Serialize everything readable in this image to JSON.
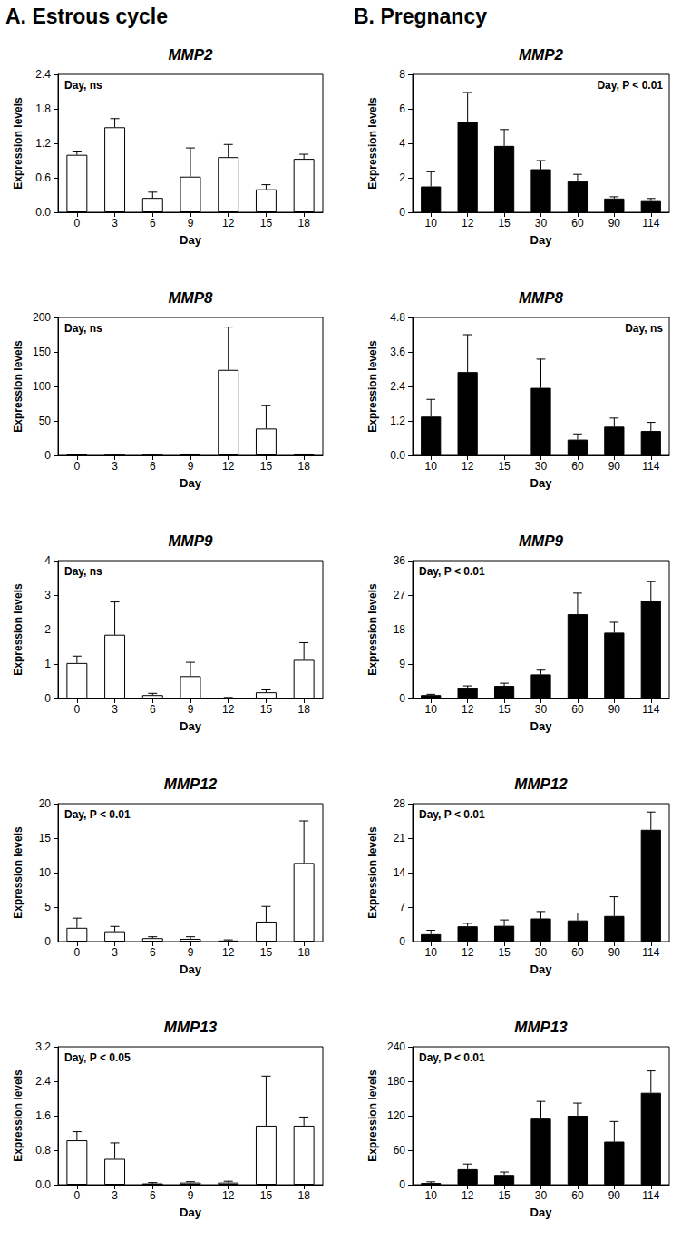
{
  "column_titles": [
    "A. Estrous cycle",
    "B. Pregnancy"
  ],
  "chart_data": [
    {
      "type": "bar",
      "title": "MMP2",
      "x_label": "Day",
      "y_label": "Expression levels",
      "annotation": "Day, ns",
      "categories": [
        "0",
        "3",
        "6",
        "9",
        "12",
        "15",
        "18"
      ],
      "values": [
        1.0,
        1.48,
        0.25,
        0.62,
        0.96,
        0.4,
        0.93
      ],
      "errors": [
        0.05,
        0.15,
        0.1,
        0.5,
        0.22,
        0.08,
        0.08
      ],
      "color": "#ffffff",
      "ylim": [
        0,
        2.4
      ],
      "yticks": [
        {
          "value": 0,
          "label": "0.0"
        },
        0.6,
        1.2,
        1.8,
        2.4
      ],
      "grid": false
    },
    {
      "type": "bar",
      "title": "MMP8",
      "x_label": "Day",
      "y_label": "Expression levels",
      "annotation": "Day, ns",
      "categories": [
        "0",
        "3",
        "6",
        "9",
        "12",
        "15",
        "18"
      ],
      "values": [
        1.0,
        0.1,
        0.1,
        1.5,
        124,
        39,
        1.5
      ],
      "errors": [
        0.5,
        0.1,
        0.1,
        0.5,
        62,
        33,
        0.5
      ],
      "color": "#ffffff",
      "ylim": [
        0,
        200
      ],
      "yticks": [
        0,
        50,
        100,
        150,
        200
      ],
      "grid": false
    },
    {
      "type": "bar",
      "title": "MMP9",
      "x_label": "Day",
      "y_label": "Expression levels",
      "annotation": "Day, ns",
      "categories": [
        "0",
        "3",
        "6",
        "9",
        "12",
        "15",
        "18"
      ],
      "values": [
        1.03,
        1.85,
        0.1,
        0.65,
        0.02,
        0.18,
        1.12
      ],
      "errors": [
        0.2,
        0.95,
        0.05,
        0.4,
        0.01,
        0.07,
        0.5
      ],
      "color": "#ffffff",
      "ylim": [
        0,
        4
      ],
      "yticks": [
        0,
        1,
        2,
        3,
        4
      ],
      "grid": false
    },
    {
      "type": "bar",
      "title": "MMP12",
      "x_label": "Day",
      "y_label": "Expression levels",
      "annotation": "Day, P < 0.01",
      "categories": [
        "0",
        "3",
        "6",
        "9",
        "12",
        "15",
        "18"
      ],
      "values": [
        2.0,
        1.5,
        0.5,
        0.4,
        0.15,
        2.9,
        11.4
      ],
      "errors": [
        1.4,
        0.7,
        0.2,
        0.3,
        0.1,
        2.2,
        6.1
      ],
      "color": "#ffffff",
      "ylim": [
        0,
        20
      ],
      "yticks": [
        0,
        5,
        10,
        15,
        20
      ],
      "grid": false
    },
    {
      "type": "bar",
      "title": "MMP13",
      "x_label": "Day",
      "y_label": "Expression levels",
      "annotation": "Day, P < 0.05",
      "categories": [
        "0",
        "3",
        "6",
        "9",
        "12",
        "15",
        "18"
      ],
      "values": [
        1.03,
        0.6,
        0.03,
        0.05,
        0.05,
        1.37,
        1.37
      ],
      "errors": [
        0.2,
        0.37,
        0.02,
        0.02,
        0.03,
        1.15,
        0.2
      ],
      "color": "#ffffff",
      "ylim": [
        0,
        3.2
      ],
      "yticks": [
        {
          "value": 0,
          "label": "0.0"
        },
        0.8,
        1.6,
        2.4,
        3.2
      ],
      "grid": false
    },
    {
      "type": "bar",
      "title": "MMP2",
      "x_label": "Day",
      "y_label": "Expression levels",
      "annotation": "Day, P < 0.01",
      "categories": [
        "10",
        "12",
        "15",
        "30",
        "60",
        "90",
        "114"
      ],
      "values": [
        1.5,
        5.25,
        3.85,
        2.5,
        1.8,
        0.8,
        0.65
      ],
      "errors": [
        0.85,
        1.7,
        0.95,
        0.5,
        0.4,
        0.1,
        0.15
      ],
      "color": "#000000",
      "ylim": [
        0,
        8
      ],
      "yticks": [
        0,
        2,
        4,
        6,
        8
      ],
      "grid": false
    },
    {
      "type": "bar",
      "title": "MMP8",
      "x_label": "Day",
      "y_label": "Expression levels",
      "annotation": "Day, ns",
      "categories": [
        "10",
        "12",
        "15",
        "30",
        "60",
        "90",
        "114"
      ],
      "values": [
        1.35,
        2.9,
        null,
        2.35,
        0.55,
        1.0,
        0.85
      ],
      "errors": [
        0.6,
        1.3,
        null,
        1.0,
        0.2,
        0.3,
        0.3
      ],
      "color": "#000000",
      "ylim": [
        0,
        4.8
      ],
      "yticks": [
        {
          "value": 0,
          "label": "0.0"
        },
        1.2,
        2.4,
        3.6,
        4.8
      ],
      "grid": false
    },
    {
      "type": "bar",
      "title": "MMP9",
      "x_label": "Day",
      "y_label": "Expression levels",
      "annotation": "Day, P < 0.01",
      "categories": [
        "10",
        "12",
        "15",
        "30",
        "60",
        "90",
        "114"
      ],
      "values": [
        0.9,
        2.7,
        3.3,
        6.3,
        22,
        17.2,
        25.5
      ],
      "errors": [
        0.2,
        0.6,
        0.7,
        1.1,
        5.5,
        2.7,
        5
      ],
      "color": "#000000",
      "ylim": [
        0,
        36
      ],
      "yticks": [
        0,
        9,
        18,
        27,
        36
      ],
      "grid": false
    },
    {
      "type": "bar",
      "title": "MMP12",
      "x_label": "Day",
      "y_label": "Expression levels",
      "annotation": "Day, P < 0.01",
      "categories": [
        "10",
        "12",
        "15",
        "30",
        "60",
        "90",
        "114"
      ],
      "values": [
        1.5,
        3.1,
        3.2,
        4.7,
        4.3,
        5.2,
        22.7
      ],
      "errors": [
        0.8,
        0.6,
        1.2,
        1.4,
        1.5,
        3.9,
        3.6
      ],
      "color": "#000000",
      "ylim": [
        0,
        28
      ],
      "yticks": [
        0,
        7,
        14,
        21,
        28
      ],
      "grid": false
    },
    {
      "type": "bar",
      "title": "MMP13",
      "x_label": "Day",
      "y_label": "Expression levels",
      "annotation": "Day, P < 0.01",
      "categories": [
        "10",
        "12",
        "15",
        "30",
        "60",
        "90",
        "114"
      ],
      "values": [
        3,
        27,
        17,
        115,
        120,
        75,
        160
      ],
      "errors": [
        2,
        9,
        5,
        30,
        22,
        35,
        38
      ],
      "color": "#000000",
      "ylim": [
        0,
        240
      ],
      "yticks": [
        0,
        60,
        120,
        180,
        240
      ],
      "grid": false
    }
  ]
}
